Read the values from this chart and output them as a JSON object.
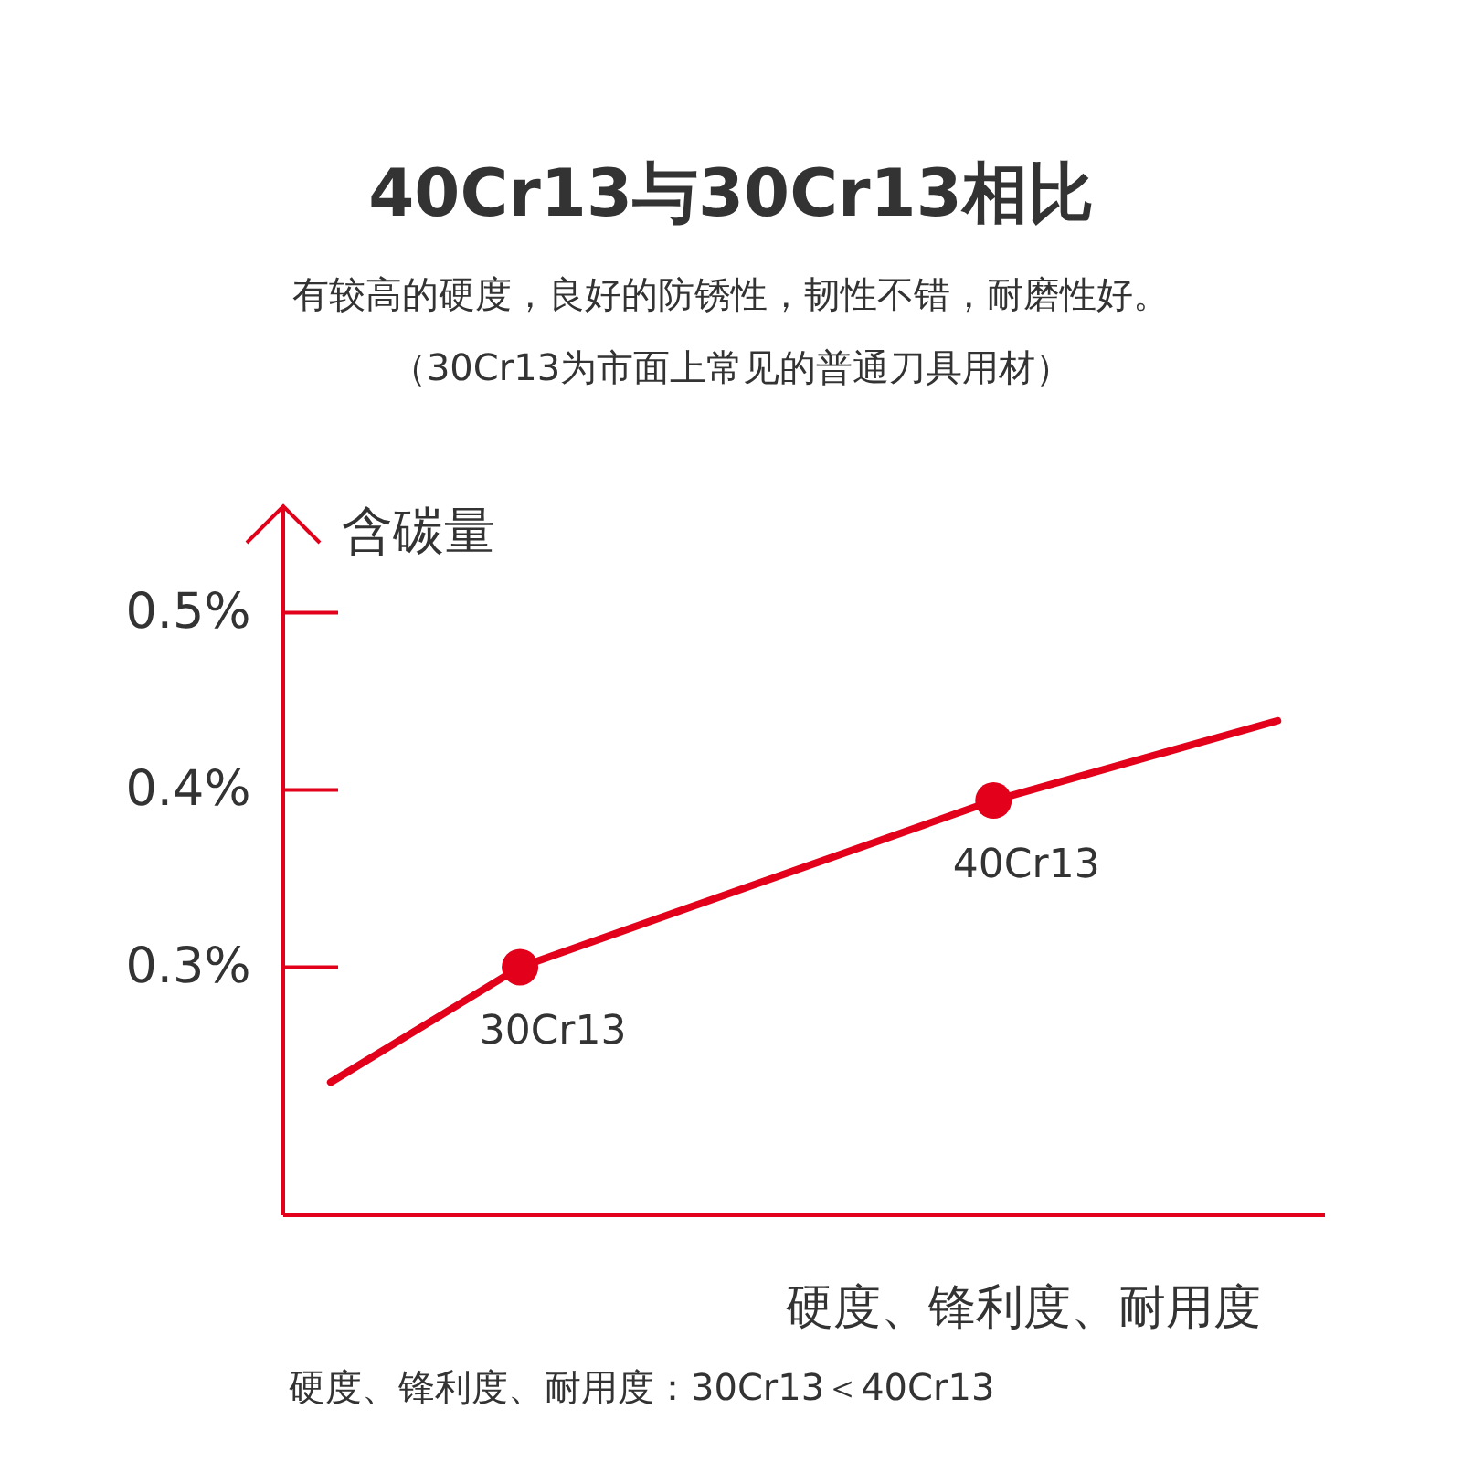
{
  "chart_data": {
    "type": "line",
    "title": "40Cr13与30Cr13相比",
    "subtitle": "有较高的硬度，良好的防锈性，韧性不错，耐磨性好。",
    "ylabel": "含碳量",
    "xlabel": "硬度、锋利度、耐用度",
    "categories": [
      null,
      null,
      null,
      null,
      null,
      null,
      null,
      null,
      null,
      null,
      null
    ],
    "ylim": [
      0.16,
      0.56
    ],
    "yticks": [
      {
        "value": 0.3,
        "label": "0.3%"
      },
      {
        "value": 0.4,
        "label": "0.4%"
      },
      {
        "value": 0.5,
        "label": "0.5%"
      }
    ],
    "tick_labels": "y",
    "grid": false,
    "series": [
      {
        "color": "#e2001a",
        "marker": "none",
        "values": [
          0.235,
          null,
          0.3,
          null,
          null,
          null,
          null,
          0.394,
          null,
          null,
          0.439
        ]
      },
      {
        "type": "scatter",
        "color": "#e2001a",
        "marker": "circle",
        "values": [
          null,
          null,
          0.3,
          null,
          null,
          null,
          null,
          0.394,
          null,
          null,
          null
        ]
      }
    ],
    "annotations": [
      "（30Cr13为市面上常见的普通刀具用材）",
      "30Cr13",
      "40Cr13",
      "硬度、锋利度、耐用度：30Cr13＜40Cr13"
    ]
  }
}
